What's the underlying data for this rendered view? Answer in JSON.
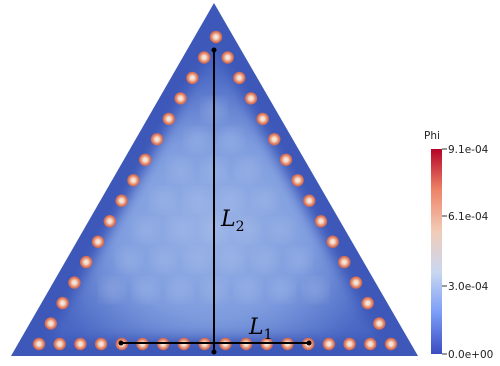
{
  "colorbar": {
    "title": "Phi",
    "ticks": [
      "9.1e-04",
      "6.1e-04",
      "3.0e-04",
      "0.0e+00"
    ],
    "min": 0.0,
    "max": 0.00091,
    "colormap": [
      "#3b4cc0",
      "#7a9df8",
      "#c9d7f0",
      "#f2cbb7",
      "#ee8468",
      "#b40426"
    ]
  },
  "labels": {
    "l2_main": "L",
    "l2_sub": "2",
    "l1_main": "L",
    "l1_sub": "1"
  },
  "colors": {
    "background_field": "#3d58b8",
    "interior_field": "#7f9fdf",
    "source_outer": "#e3876a",
    "source_inner": "#f1d8c7",
    "line": "#000000"
  },
  "sources": {
    "left_edge_count": 16,
    "right_edge_count": 16,
    "bottom_edge_count": 18
  }
}
